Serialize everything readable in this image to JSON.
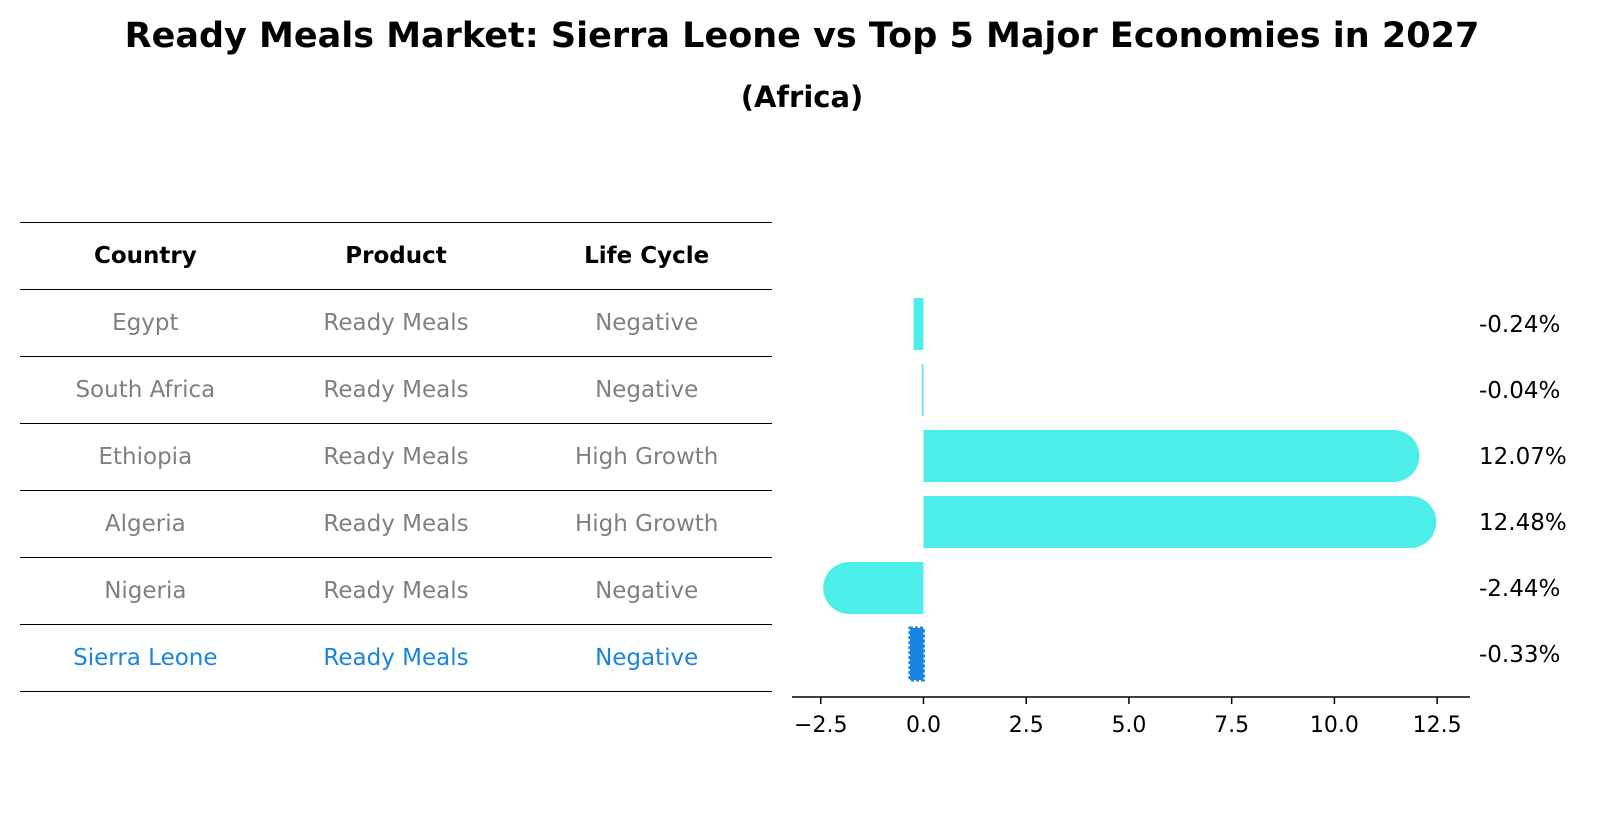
{
  "header": {
    "title": "Ready Meals Market: Sierra Leone vs Top 5 Major Economies in 2027",
    "subtitle": "(Africa)"
  },
  "table": {
    "columns": [
      "Country",
      "Product",
      "Life Cycle"
    ],
    "rows": [
      {
        "country": "Egypt",
        "product": "Ready Meals",
        "life_cycle": "Negative"
      },
      {
        "country": "South Africa",
        "product": "Ready Meals",
        "life_cycle": "Negative"
      },
      {
        "country": "Ethiopia",
        "product": "Ready Meals",
        "life_cycle": "High Growth"
      },
      {
        "country": "Algeria",
        "product": "Ready Meals",
        "life_cycle": "High Growth"
      },
      {
        "country": "Nigeria",
        "product": "Ready Meals",
        "life_cycle": "Negative"
      },
      {
        "country": "Sierra Leone",
        "product": "Ready Meals",
        "life_cycle": "Negative"
      }
    ]
  },
  "colors": {
    "bar": "#4deeea",
    "highlight": "#1a85e0",
    "muted_text": "#808080"
  },
  "chart_data": {
    "type": "bar",
    "orientation": "horizontal",
    "categories": [
      "Egypt",
      "South Africa",
      "Ethiopia",
      "Algeria",
      "Nigeria",
      "Sierra Leone"
    ],
    "values": [
      -0.24,
      -0.04,
      12.07,
      12.48,
      -2.44,
      -0.33
    ],
    "value_labels": [
      "-0.24%",
      "-0.04%",
      "12.07%",
      "12.48%",
      "-2.44%",
      "-0.33%"
    ],
    "highlight": "Sierra Leone",
    "xlim": [
      -3.2,
      13.3
    ],
    "xticks": [
      -2.5,
      0.0,
      2.5,
      5.0,
      7.5,
      10.0,
      12.5
    ],
    "xtick_labels": [
      "−2.5",
      "0.0",
      "2.5",
      "5.0",
      "7.5",
      "10.0",
      "12.5"
    ]
  }
}
